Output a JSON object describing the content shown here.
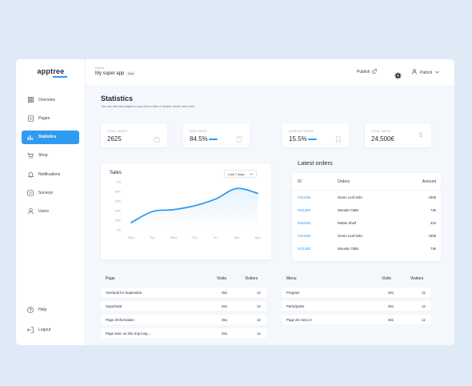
{
  "sidebar": {
    "logo": "apptree",
    "items": [
      {
        "label": "Overview",
        "icon": "grid-icon"
      },
      {
        "label": "Pages",
        "icon": "page-icon"
      },
      {
        "label": "Statistics",
        "icon": "bar-chart-icon",
        "active": true
      },
      {
        "label": "Shop",
        "icon": "cart-icon"
      },
      {
        "label": "Notifications",
        "icon": "bell-icon"
      },
      {
        "label": "Surveys",
        "icon": "survey-icon"
      },
      {
        "label": "Users",
        "icon": "user-icon"
      }
    ],
    "bottom": [
      {
        "label": "Help",
        "icon": "help-icon"
      },
      {
        "label": "Logout",
        "icon": "logout-icon"
      }
    ]
  },
  "topbar": {
    "app_label": "Liberty",
    "app_name": "My super app",
    "live_badge": "Live",
    "publish": "Publish",
    "user": "Patrick"
  },
  "page": {
    "title": "Statistics",
    "subtitle": "You can add new pages to your menu tabs or simply create new ones"
  },
  "stats": [
    {
      "label": "TOTAL USERS",
      "value": "2625",
      "icon": "briefcase-icon"
    },
    {
      "label": "NEW USERS",
      "value": "84.5%",
      "icon": "clipboard-icon",
      "progress": 0.845
    },
    {
      "label": "AVERAGE USERS",
      "value": "15.5%",
      "icon": "bookmark-icon",
      "progress": 0.155
    },
    {
      "label": "TOTAL SALES",
      "value": "24,500€",
      "icon": "dollar-icon"
    }
  ],
  "sales": {
    "title": "Sales",
    "range": "Last 7 days"
  },
  "chart_data": {
    "type": "area",
    "title": "Sales",
    "categories": [
      "Mon",
      "Tue",
      "Wed",
      "Thu",
      "Fri",
      "Sat",
      "Sun"
    ],
    "yticks": [
      "100",
      "80%",
      "60%",
      "40%",
      "20%",
      "0%"
    ],
    "ylim": [
      0,
      100
    ],
    "series": [
      {
        "values": [
          15,
          38,
          42,
          50,
          64,
          86,
          76
        ]
      }
    ],
    "grid": false,
    "accent": "#2f9bf0"
  },
  "orders": {
    "title": "Latest orders",
    "columns": [
      "ID",
      "Orders",
      "Amount"
    ],
    "rows": [
      [
        "#313456",
        "Green Leaf Sofa",
        "180€"
      ],
      [
        "#211382",
        "Wooden Table",
        "74€"
      ],
      [
        "#653352",
        "Rattan Shelf",
        "31€"
      ],
      [
        "#313456",
        "Green Leaf Sofa",
        "180€"
      ],
      [
        "#211382",
        "Wooden Table",
        "74€"
      ]
    ]
  },
  "pages_table": {
    "columns": [
      "Page",
      "Visits",
      "Visitors"
    ],
    "rows": [
      [
        "Vendredi for Septembre",
        "251",
        "12"
      ],
      [
        "Superbowl",
        "251",
        "12"
      ],
      [
        "Page d'information",
        "251",
        "12"
      ],
      [
        "Page avec un titre trop long ...",
        "251",
        "12"
      ]
    ]
  },
  "menu_table": {
    "columns": [
      "Menu",
      "Visits",
      "Visitors"
    ],
    "rows": [
      [
        "Program",
        "251",
        "12"
      ],
      [
        "Participants",
        "251",
        "12"
      ],
      [
        "Page de menu 3",
        "251",
        "12"
      ]
    ]
  },
  "colors": {
    "accent": "#2f9bf0",
    "background": "#dfeaf7",
    "main_bg": "#f4f7fb"
  }
}
